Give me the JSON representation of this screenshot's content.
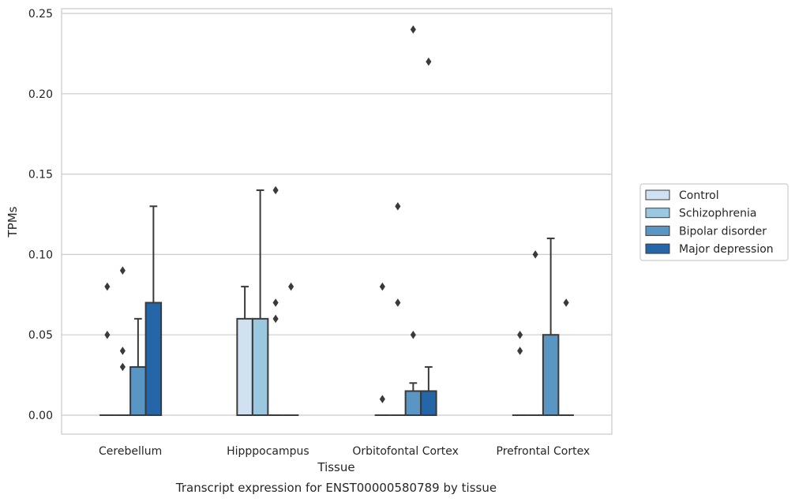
{
  "chart_data": {
    "type": "box",
    "title": "Transcript expression for ENST00000580789 by tissue",
    "xlabel": "Tissue",
    "ylabel": "TPMs",
    "ylim": [
      -0.0115,
      0.2525
    ],
    "yticks": [
      0.0,
      0.05,
      0.1,
      0.15,
      0.2,
      0.25
    ],
    "ytick_labels": [
      "0.00",
      "0.05",
      "0.10",
      "0.15",
      "0.20",
      "0.25"
    ],
    "grid": true,
    "legend_position": "right",
    "categories": [
      "Cerebellum",
      "Hipppocampus",
      "Orbitofontal Cortex",
      "Prefrontal Cortex"
    ],
    "series": [
      {
        "name": "Control",
        "color": "#d0e1f2",
        "boxes": [
          {
            "q1": 0,
            "median": 0,
            "q3": 0,
            "whisker_low": 0,
            "whisker_high": 0,
            "outliers": [
              0.08,
              0.05
            ]
          },
          {
            "q1": 0,
            "median": 0,
            "q3": 0.06,
            "whisker_low": 0,
            "whisker_high": 0.08,
            "outliers": []
          },
          {
            "q1": 0,
            "median": 0,
            "q3": 0,
            "whisker_low": 0,
            "whisker_high": 0,
            "outliers": [
              0.08,
              0.01
            ]
          },
          {
            "q1": 0,
            "median": 0,
            "q3": 0,
            "whisker_low": 0,
            "whisker_high": 0,
            "outliers": [
              0.05,
              0.04
            ]
          }
        ]
      },
      {
        "name": "Schizophrenia",
        "color": "#9ac8e0",
        "boxes": [
          {
            "q1": 0,
            "median": 0,
            "q3": 0,
            "whisker_low": 0,
            "whisker_high": 0,
            "outliers": [
              0.09,
              0.04,
              0.03
            ]
          },
          {
            "q1": 0,
            "median": 0,
            "q3": 0.06,
            "whisker_low": 0,
            "whisker_high": 0.14,
            "outliers": []
          },
          {
            "q1": 0,
            "median": 0,
            "q3": 0,
            "whisker_low": 0,
            "whisker_high": 0,
            "outliers": [
              0.13,
              0.07
            ]
          },
          {
            "q1": 0,
            "median": 0,
            "q3": 0,
            "whisker_low": 0,
            "whisker_high": 0,
            "outliers": [
              0.1
            ]
          }
        ]
      },
      {
        "name": "Bipolar disorder",
        "color": "#5a96c3",
        "boxes": [
          {
            "q1": 0,
            "median": 0,
            "q3": 0.03,
            "whisker_low": 0,
            "whisker_high": 0.06,
            "outliers": []
          },
          {
            "q1": 0,
            "median": 0,
            "q3": 0,
            "whisker_low": 0,
            "whisker_high": 0,
            "outliers": [
              0.14,
              0.07,
              0.06
            ]
          },
          {
            "q1": 0,
            "median": 0,
            "q3": 0.015,
            "whisker_low": 0,
            "whisker_high": 0.02,
            "outliers": [
              0.24,
              0.05
            ]
          },
          {
            "q1": 0,
            "median": 0,
            "q3": 0.05,
            "whisker_low": 0,
            "whisker_high": 0.11,
            "outliers": []
          }
        ]
      },
      {
        "name": "Major depression",
        "color": "#2566a8",
        "boxes": [
          {
            "q1": 0,
            "median": 0,
            "q3": 0.07,
            "whisker_low": 0,
            "whisker_high": 0.13,
            "outliers": []
          },
          {
            "q1": 0,
            "median": 0,
            "q3": 0,
            "whisker_low": 0,
            "whisker_high": 0,
            "outliers": [
              0.08
            ]
          },
          {
            "q1": 0,
            "median": 0,
            "q3": 0.015,
            "whisker_low": 0,
            "whisker_high": 0.03,
            "outliers": [
              0.22
            ]
          },
          {
            "q1": 0,
            "median": 0,
            "q3": 0,
            "whisker_low": 0,
            "whisker_high": 0,
            "outliers": [
              0.07
            ]
          }
        ]
      }
    ]
  }
}
